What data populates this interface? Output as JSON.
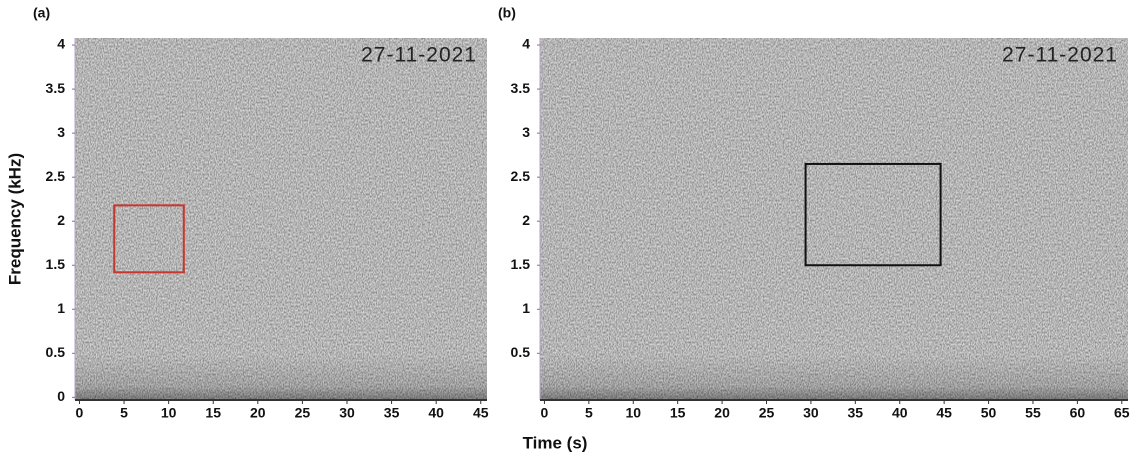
{
  "chart_data": [
    {
      "type": "spectrogram",
      "panel_label": "(a)",
      "annotation": "27-11-2021",
      "xlim": [
        -0.5,
        45.7
      ],
      "xticks": [
        0,
        5,
        10,
        15,
        20,
        25,
        30,
        35,
        40,
        45
      ],
      "ylim": [
        -0.03,
        4.08
      ],
      "yticks": [
        0,
        0.5,
        1,
        1.5,
        2,
        2.5,
        3,
        3.5,
        4
      ],
      "highlight": {
        "x": [
          3.9,
          11.7
        ],
        "y": [
          1.42,
          2.18
        ],
        "color": "#c8372d"
      }
    },
    {
      "type": "spectrogram",
      "panel_label": "(b)",
      "annotation": "27-11-2021",
      "xlim": [
        -0.5,
        65.7
      ],
      "xticks": [
        0,
        5,
        10,
        15,
        20,
        25,
        30,
        35,
        40,
        45,
        50,
        55,
        60,
        65
      ],
      "ylim": [
        -0.03,
        4.08
      ],
      "yticks": [
        0.5,
        1,
        1.5,
        2,
        2.5,
        3,
        3.5,
        4
      ],
      "highlight": {
        "x": [
          29.4,
          44.6
        ],
        "y": [
          1.5,
          2.65
        ],
        "color": "#111111"
      }
    }
  ],
  "xlabel": "Time (s)",
  "ylabel": "Frequency (kHz)"
}
